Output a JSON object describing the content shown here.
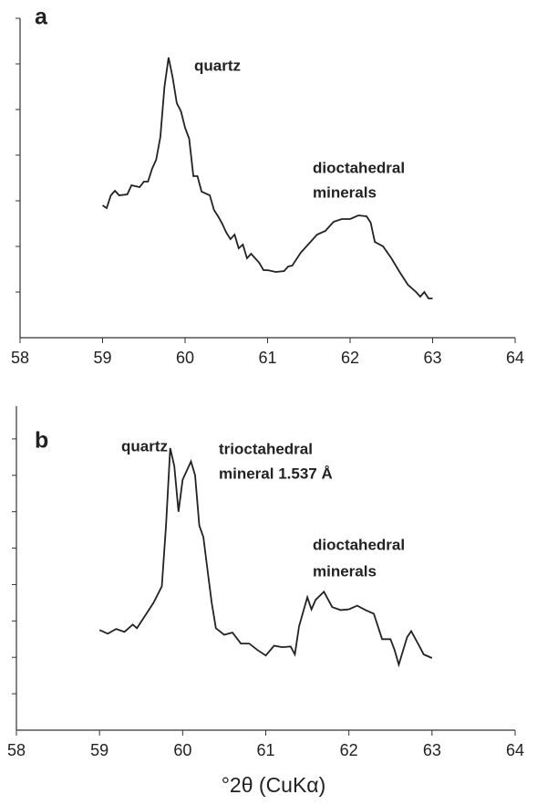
{
  "chart_data": [
    {
      "type": "line",
      "panel_label": "a",
      "color": "#222222",
      "annotations": [
        [
          "quartz"
        ],
        [
          "dioctahedral",
          "minerals"
        ]
      ],
      "x": [
        59.0,
        59.05,
        59.1,
        59.15,
        59.2,
        59.3,
        59.35,
        59.45,
        59.5,
        59.55,
        59.6,
        59.65,
        59.7,
        59.75,
        59.8,
        59.85,
        59.9,
        59.95,
        60.0,
        60.05,
        60.1,
        60.15,
        60.2,
        60.3,
        60.35,
        60.4,
        60.45,
        60.5,
        60.55,
        60.6,
        60.65,
        60.7,
        60.75,
        60.8,
        60.9,
        60.95,
        61.0,
        61.1,
        61.2,
        61.25,
        61.3,
        61.4,
        61.5,
        61.6,
        61.7,
        61.8,
        61.9,
        62.0,
        62.1,
        62.2,
        62.25,
        62.3,
        62.4,
        62.5,
        62.6,
        62.7,
        62.8,
        62.85,
        62.9,
        62.95,
        63.0
      ],
      "values": [
        2.9,
        2.84,
        3.12,
        3.22,
        3.12,
        3.14,
        3.34,
        3.3,
        3.42,
        3.42,
        3.7,
        3.9,
        4.4,
        5.5,
        6.14,
        5.7,
        5.14,
        4.96,
        4.6,
        4.36,
        3.54,
        3.54,
        3.2,
        3.12,
        2.8,
        2.66,
        2.5,
        2.3,
        2.16,
        2.26,
        1.96,
        2.04,
        1.74,
        1.84,
        1.64,
        1.48,
        1.48,
        1.44,
        1.46,
        1.56,
        1.58,
        1.86,
        2.06,
        2.26,
        2.34,
        2.54,
        2.6,
        2.6,
        2.68,
        2.66,
        2.52,
        2.1,
        2.0,
        1.74,
        1.44,
        1.16,
        1.0,
        0.9,
        1.0,
        0.86,
        0.86
      ],
      "xlim": [
        58,
        64
      ],
      "xticks": [
        58,
        59,
        60,
        61,
        62,
        63,
        64
      ],
      "ylim": [
        0,
        7
      ],
      "yticks": [
        1,
        2,
        3,
        4,
        5,
        6,
        7
      ]
    },
    {
      "type": "line",
      "panel_label": "b",
      "color": "#222222",
      "x_label": "°2θ (CuKα)",
      "annotations": [
        [
          "quartz"
        ],
        [
          "trioctahedral",
          "mineral 1.537 Å"
        ],
        [
          "dioctahedral",
          "minerals"
        ]
      ],
      "x": [
        59.0,
        59.1,
        59.2,
        59.3,
        59.4,
        59.45,
        59.55,
        59.65,
        59.75,
        59.8,
        59.85,
        59.9,
        59.95,
        60.0,
        60.1,
        60.15,
        60.2,
        60.25,
        60.3,
        60.35,
        60.4,
        60.5,
        60.6,
        60.7,
        60.8,
        60.9,
        61.0,
        61.1,
        61.2,
        61.3,
        61.35,
        61.4,
        61.5,
        61.55,
        61.6,
        61.7,
        61.8,
        61.9,
        62.0,
        62.1,
        62.2,
        62.3,
        62.4,
        62.5,
        62.55,
        62.6,
        62.7,
        62.75,
        62.85,
        62.9,
        63.0
      ],
      "values": [
        2.75,
        2.65,
        2.78,
        2.7,
        2.9,
        2.8,
        3.15,
        3.5,
        3.95,
        5.62,
        7.75,
        7.25,
        6.0,
        6.88,
        7.38,
        7.0,
        5.62,
        5.3,
        4.38,
        3.5,
        2.8,
        2.62,
        2.68,
        2.38,
        2.38,
        2.2,
        2.05,
        2.32,
        2.28,
        2.3,
        2.08,
        2.85,
        3.65,
        3.32,
        3.58,
        3.8,
        3.38,
        3.3,
        3.32,
        3.42,
        3.3,
        3.2,
        2.5,
        2.5,
        2.2,
        1.8,
        2.55,
        2.72,
        2.3,
        2.08,
        1.98
      ],
      "xlim": [
        58,
        64
      ],
      "xticks": [
        58,
        59,
        60,
        61,
        62,
        63,
        64
      ],
      "ylim": [
        0,
        8.9
      ],
      "yticks": [
        1,
        2,
        3,
        4,
        5,
        6,
        7,
        8
      ]
    }
  ]
}
